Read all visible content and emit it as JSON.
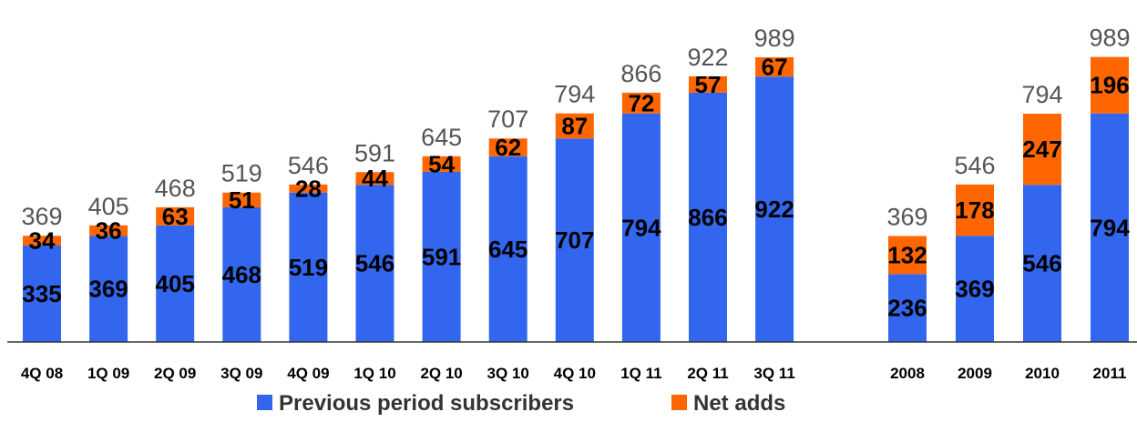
{
  "chart_data": {
    "type": "bar",
    "stacked": true,
    "groups": [
      {
        "categories": [
          "4Q 08",
          "1Q 09",
          "2Q 09",
          "3Q 09",
          "4Q 09",
          "1Q 10",
          "2Q 10",
          "3Q 10",
          "4Q 10",
          "1Q 11",
          "2Q 11",
          "3Q 11"
        ],
        "series": [
          {
            "name": "Previous period subscribers",
            "values": [
              335,
              369,
              405,
              468,
              519,
              546,
              591,
              645,
              707,
              794,
              866,
              922
            ]
          },
          {
            "name": "Net adds",
            "values": [
              34,
              36,
              63,
              51,
              28,
              44,
              54,
              62,
              87,
              72,
              57,
              67
            ]
          }
        ],
        "totals": [
          369,
          405,
          468,
          519,
          546,
          591,
          645,
          707,
          794,
          866,
          922,
          989
        ]
      },
      {
        "categories": [
          "2008",
          "2009",
          "2010",
          "2011"
        ],
        "series": [
          {
            "name": "Previous period subscribers",
            "values": [
              236,
              369,
              546,
              794
            ]
          },
          {
            "name": "Net adds",
            "values": [
              132,
              178,
              247,
              196
            ]
          }
        ],
        "totals": [
          369,
          546,
          794,
          989
        ]
      }
    ],
    "colors": {
      "Previous period subscribers": "#3366ee",
      "Net adds": "#ff6600"
    },
    "ylim": [
      0,
      1000
    ],
    "legend": {
      "placement": "bottom-center",
      "entries": [
        "Previous period subscribers",
        "Net adds"
      ]
    }
  }
}
